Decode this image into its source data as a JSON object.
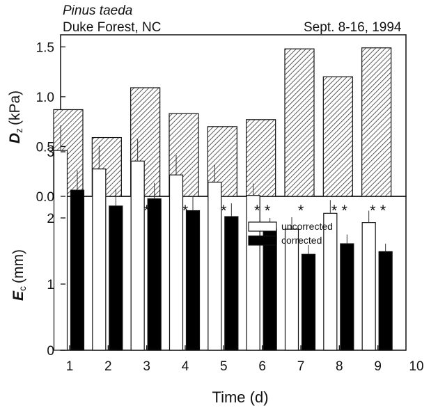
{
  "header": {
    "species": "Pinus taeda",
    "site": "Duke Forest, NC",
    "dates": "Sept. 8-16, 1994"
  },
  "chart_data": [
    {
      "type": "bar",
      "panel": "top",
      "x": [
        1,
        2,
        3,
        4,
        5,
        6,
        7,
        8,
        9
      ],
      "values": [
        0.87,
        0.59,
        1.09,
        0.83,
        0.7,
        0.77,
        1.48,
        1.2,
        1.49
      ],
      "ylabel_main": "D",
      "ylabel_sub": "z",
      "ylabel_unit": "(kPa)",
      "ylim": [
        0,
        1.6
      ],
      "yticks": [
        0.0,
        0.5,
        1.0,
        1.5
      ],
      "ytick_labels": [
        "0.0",
        "0.5",
        "1.0",
        "1.5"
      ],
      "fill": "hatched",
      "grid": false
    },
    {
      "type": "bar",
      "panel": "bottom",
      "x": [
        1,
        2,
        3,
        4,
        5,
        6,
        7,
        8,
        9
      ],
      "xlim": [
        0,
        10
      ],
      "xticks": [
        1,
        2,
        3,
        4,
        5,
        6,
        7,
        8,
        9,
        10
      ],
      "xtick_labels": [
        "1",
        "2",
        "3",
        "4",
        "5",
        "6",
        "7",
        "8",
        "9",
        "10"
      ],
      "xlabel": "Time (d)",
      "ylabel_main": "E",
      "ylabel_sub": "c",
      "ylabel_unit": "(mm)",
      "ylim": [
        0,
        3.5
      ],
      "yticks": [
        0,
        1,
        2,
        3
      ],
      "ytick_labels": [
        "0",
        "1",
        "2",
        "3"
      ],
      "series": [
        {
          "name": "uncorrected",
          "color": "#ffffff",
          "values": [
            3.02,
            2.74,
            2.86,
            2.65,
            2.54,
            2.34,
            1.83,
            2.07,
            1.93
          ],
          "errors": [
            0.38,
            0.35,
            0.33,
            0.3,
            0.26,
            0.18,
            0.18,
            0.2,
            0.18
          ]
        },
        {
          "name": "corrected",
          "color": "#000000",
          "values": [
            2.42,
            2.18,
            2.29,
            2.11,
            2.02,
            1.84,
            1.45,
            1.61,
            1.49
          ],
          "errors": [
            0.3,
            0.26,
            0.24,
            0.22,
            0.2,
            0.16,
            0.14,
            0.14,
            0.12
          ]
        }
      ],
      "significance": [
        "",
        "",
        "*",
        "*",
        "*",
        "**",
        "*",
        "**",
        "**"
      ],
      "legend_position": "top-right",
      "grid": false
    }
  ]
}
